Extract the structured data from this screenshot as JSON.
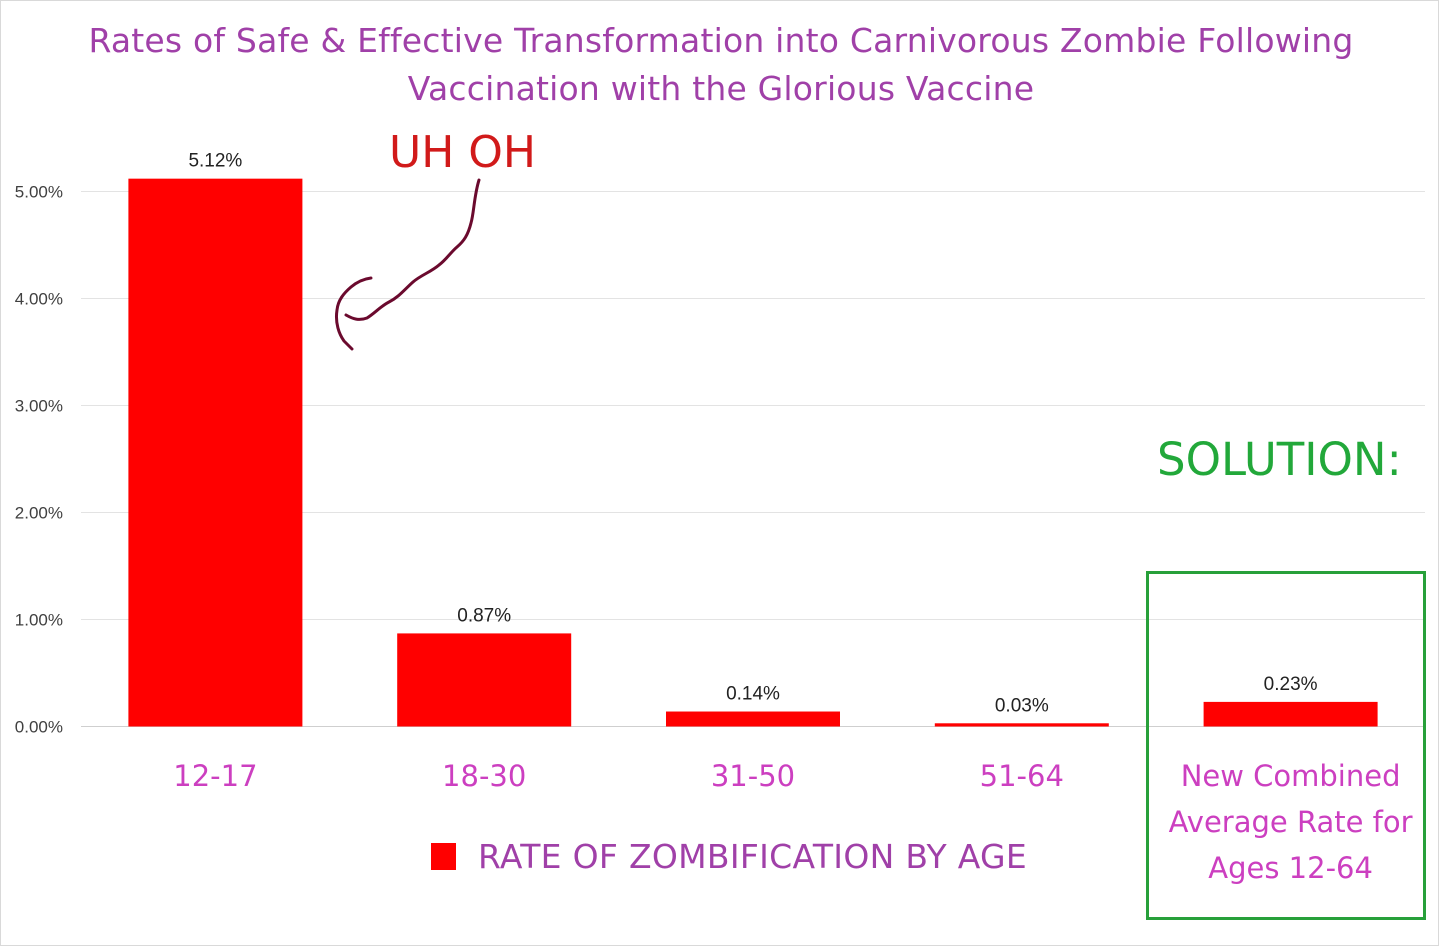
{
  "chart_data": {
    "type": "bar",
    "title": [
      "Rates of Safe & Effective Transformation into Carnivorous Zombie Following",
      "Vaccination with the Glorious Vaccine"
    ],
    "categories": [
      "12-17",
      "18-30",
      "31-50",
      "51-64",
      "New Combined Average Rate for Ages 12-64"
    ],
    "category_lines": [
      [
        "12-17"
      ],
      [
        "18-30"
      ],
      [
        "31-50"
      ],
      [
        "51-64"
      ],
      [
        "New Combined",
        "Average Rate for",
        "Ages 12-64"
      ]
    ],
    "series": [
      {
        "name": "RATE OF ZOMBIFICATION BY AGE",
        "values": [
          5.12,
          0.87,
          0.14,
          0.03,
          0.23
        ]
      }
    ],
    "data_labels": [
      "5.12%",
      "0.87%",
      "0.14%",
      "0.03%",
      "0.23%"
    ],
    "y_ticks": [
      0,
      1,
      2,
      3,
      4,
      5
    ],
    "y_tick_labels": [
      "0.00%",
      "1.00%",
      "2.00%",
      "3.00%",
      "4.00%",
      "5.00%"
    ],
    "ylim": [
      0,
      5
    ],
    "grid": true,
    "legend": "bottom",
    "colors": {
      "bar": "#ff0000",
      "title": "#a040a8",
      "category": "#cc3fc0",
      "annotation_warning": "#d11a1a",
      "annotation_solution": "#22a83a",
      "arrow": "#6b0a2e"
    }
  },
  "annotations": {
    "uh_oh": "UH OH",
    "solution": "SOLUTION:"
  }
}
